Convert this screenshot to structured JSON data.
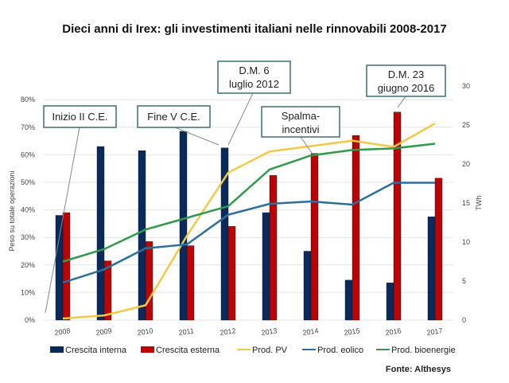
{
  "chart_data": {
    "type": "bar",
    "title": "Dieci anni di Irex: gli investimenti italiani nelle rinnovabili 2008-2017",
    "categories": [
      "2008",
      "2009",
      "2010",
      "2011",
      "2012",
      "2013",
      "2014",
      "2015",
      "2016",
      "2017"
    ],
    "ylabel": "Peso su totale operazioni",
    "ylabel_right": "TWh",
    "ylim": [
      0,
      80
    ],
    "ylim_right": [
      0,
      30
    ],
    "yticks": [
      "0%",
      "10%",
      "20%",
      "30%",
      "40%",
      "50%",
      "60%",
      "70%",
      "80%"
    ],
    "yticks_right": [
      "0",
      "5",
      "10",
      "15",
      "20",
      "25",
      "30"
    ],
    "grid": true,
    "legend_placement": "bottom",
    "series": [
      {
        "name": "Crescita interna",
        "kind": "bar",
        "axis": "left",
        "color": "#0b2a5c",
        "values": [
          38,
          63,
          61.5,
          68.5,
          62.5,
          39,
          25,
          14.5,
          13.5,
          37.5
        ]
      },
      {
        "name": "Crescita esterna",
        "kind": "bar",
        "axis": "left",
        "color": "#c00000",
        "values": [
          39,
          21.5,
          28.5,
          27,
          34,
          52.5,
          60.5,
          67,
          75.5,
          51.5
        ]
      },
      {
        "name": "Prod. PV",
        "kind": "line",
        "axis": "right",
        "color": "#f3c843",
        "values": [
          0.2,
          0.6,
          1.9,
          10.8,
          18.9,
          21.6,
          22.3,
          23,
          22.2,
          25.2
        ]
      },
      {
        "name": "Prod. eolico",
        "kind": "line",
        "axis": "right",
        "color": "#2d6f9c",
        "values": [
          4.8,
          6.5,
          9.2,
          9.7,
          13.5,
          14.9,
          15.2,
          14.8,
          17.6,
          17.6
        ]
      },
      {
        "name": "Prod. bioenergie",
        "kind": "line",
        "axis": "right",
        "color": "#2f9a4c",
        "values": [
          7.5,
          9.1,
          11.6,
          13.1,
          14.6,
          19.3,
          21.1,
          21.8,
          22,
          22.6
        ]
      }
    ],
    "annotations": [
      {
        "text": [
          "Inizio II C.E."
        ],
        "year": "2008"
      },
      {
        "text": [
          "Fine V C.E."
        ],
        "year": "2012"
      },
      {
        "text": [
          "D.M. 6",
          "luglio 2012"
        ],
        "year": "2012"
      },
      {
        "text": [
          "Spalma-",
          "incentivi"
        ],
        "year": "2014"
      },
      {
        "text": [
          "D.M. 23",
          "giugno 2016"
        ],
        "year": "2016"
      }
    ],
    "source": "Fonte: Althesys"
  }
}
